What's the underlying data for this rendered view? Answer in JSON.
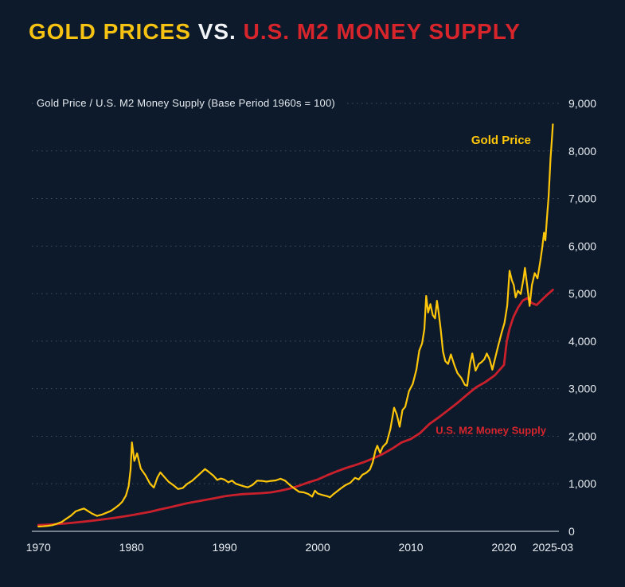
{
  "page": {
    "background": "#0c1a2b"
  },
  "header": {
    "title_part1": "GOLD PRICES",
    "title_part2": " VS. ",
    "title_part3": "U.S. M2 MONEY SUPPLY",
    "title_part1_color": "#f6c313",
    "title_part2_color": "#f2f4f7",
    "title_part3_color": "#d8252c"
  },
  "chart_data": {
    "type": "line",
    "title": "Gold Prices vs. U.S. M2 Money Supply",
    "subtitle": "Gold Price / U.S. M2 Money Supply (Base Period 1960s = 100)",
    "xlim": [
      1969.3,
      2025.9
    ],
    "ylim": [
      0,
      9000
    ],
    "grid": true,
    "grid_color": "rgba(168,184,205,0.35)",
    "axis_line_color": "#97a1b0",
    "axis_text_color": "#e9edf2",
    "legend_position": "inline-annotations",
    "x_ticks": [
      {
        "v": 1970,
        "label": "1970"
      },
      {
        "v": 1980,
        "label": "1980"
      },
      {
        "v": 1990,
        "label": "1990"
      },
      {
        "v": 2000,
        "label": "2000"
      },
      {
        "v": 2010,
        "label": "2010"
      },
      {
        "v": 2020,
        "label": "2020"
      },
      {
        "v": 2025.25,
        "label": "2025-03"
      }
    ],
    "y_ticks": [
      {
        "v": 0,
        "label": "0"
      },
      {
        "v": 1000,
        "label": "1,000"
      },
      {
        "v": 2000,
        "label": "2,000"
      },
      {
        "v": 3000,
        "label": "3,000"
      },
      {
        "v": 4000,
        "label": "4,000"
      },
      {
        "v": 5000,
        "label": "5,000"
      },
      {
        "v": 6000,
        "label": "6,000"
      },
      {
        "v": 7000,
        "label": "7,000"
      },
      {
        "v": 8000,
        "label": "8,000"
      },
      {
        "v": 9000,
        "label": "9,000"
      }
    ],
    "series": [
      {
        "id": "m2",
        "name": "U.S. M2 Money Supply",
        "color": "#c9202c",
        "stroke_width": 2.8,
        "points": [
          [
            1970,
            130
          ],
          [
            1971,
            140
          ],
          [
            1972,
            153
          ],
          [
            1973,
            168
          ],
          [
            1974,
            185
          ],
          [
            1975,
            205
          ],
          [
            1976,
            228
          ],
          [
            1977,
            252
          ],
          [
            1978,
            278
          ],
          [
            1979,
            308
          ],
          [
            1980,
            340
          ],
          [
            1981,
            374
          ],
          [
            1982,
            410
          ],
          [
            1983,
            458
          ],
          [
            1984,
            500
          ],
          [
            1985,
            545
          ],
          [
            1986,
            593
          ],
          [
            1987,
            628
          ],
          [
            1988,
            662
          ],
          [
            1989,
            700
          ],
          [
            1990,
            738
          ],
          [
            1991,
            763
          ],
          [
            1992,
            783
          ],
          [
            1993,
            793
          ],
          [
            1994,
            803
          ],
          [
            1995,
            820
          ],
          [
            1996,
            855
          ],
          [
            1997,
            900
          ],
          [
            1998,
            958
          ],
          [
            1999,
            1028
          ],
          [
            2000,
            1090
          ],
          [
            2001,
            1178
          ],
          [
            2002,
            1258
          ],
          [
            2003,
            1330
          ],
          [
            2004,
            1392
          ],
          [
            2005,
            1458
          ],
          [
            2006,
            1538
          ],
          [
            2007,
            1628
          ],
          [
            2008,
            1740
          ],
          [
            2009,
            1868
          ],
          [
            2010,
            1942
          ],
          [
            2011,
            2068
          ],
          [
            2012,
            2258
          ],
          [
            2013,
            2398
          ],
          [
            2014,
            2548
          ],
          [
            2015,
            2700
          ],
          [
            2016,
            2868
          ],
          [
            2017,
            3028
          ],
          [
            2018,
            3140
          ],
          [
            2019,
            3278
          ],
          [
            2020,
            3500
          ],
          [
            2020.3,
            4000
          ],
          [
            2020.6,
            4260
          ],
          [
            2021,
            4500
          ],
          [
            2021.5,
            4700
          ],
          [
            2022,
            4850
          ],
          [
            2022.5,
            4905
          ],
          [
            2023,
            4800
          ],
          [
            2023.5,
            4760
          ],
          [
            2024,
            4855
          ],
          [
            2024.5,
            4950
          ],
          [
            2025.25,
            5080
          ]
        ]
      },
      {
        "id": "gold",
        "name": "Gold Price",
        "color": "#ffc60a",
        "stroke_width": 2.2,
        "points": [
          [
            1970,
            100
          ],
          [
            1970.5,
            105
          ],
          [
            1971,
            115
          ],
          [
            1971.5,
            128
          ],
          [
            1972,
            160
          ],
          [
            1972.5,
            195
          ],
          [
            1973,
            265
          ],
          [
            1973.5,
            330
          ],
          [
            1974,
            420
          ],
          [
            1974.5,
            455
          ],
          [
            1974.9,
            480
          ],
          [
            1975.3,
            430
          ],
          [
            1975.8,
            370
          ],
          [
            1976.3,
            325
          ],
          [
            1976.8,
            350
          ],
          [
            1977.3,
            390
          ],
          [
            1977.8,
            430
          ],
          [
            1978.3,
            500
          ],
          [
            1978.7,
            560
          ],
          [
            1979,
            620
          ],
          [
            1979.4,
            750
          ],
          [
            1979.7,
            950
          ],
          [
            1979.9,
            1300
          ],
          [
            1980.05,
            1870
          ],
          [
            1980.3,
            1480
          ],
          [
            1980.6,
            1640
          ],
          [
            1981,
            1320
          ],
          [
            1981.5,
            1180
          ],
          [
            1982,
            1000
          ],
          [
            1982.4,
            920
          ],
          [
            1982.8,
            1140
          ],
          [
            1983.1,
            1240
          ],
          [
            1983.5,
            1150
          ],
          [
            1984,
            1040
          ],
          [
            1984.5,
            970
          ],
          [
            1985,
            890
          ],
          [
            1985.5,
            910
          ],
          [
            1986,
            1000
          ],
          [
            1986.5,
            1060
          ],
          [
            1987,
            1150
          ],
          [
            1987.5,
            1240
          ],
          [
            1987.9,
            1310
          ],
          [
            1988.3,
            1250
          ],
          [
            1988.8,
            1170
          ],
          [
            1989.2,
            1080
          ],
          [
            1989.6,
            1110
          ],
          [
            1990,
            1085
          ],
          [
            1990.4,
            1030
          ],
          [
            1990.8,
            1065
          ],
          [
            1991.2,
            1000
          ],
          [
            1991.6,
            975
          ],
          [
            1992,
            950
          ],
          [
            1992.5,
            925
          ],
          [
            1993,
            975
          ],
          [
            1993.5,
            1065
          ],
          [
            1994,
            1060
          ],
          [
            1994.5,
            1045
          ],
          [
            1995,
            1060
          ],
          [
            1995.5,
            1070
          ],
          [
            1996,
            1105
          ],
          [
            1996.5,
            1065
          ],
          [
            1997,
            975
          ],
          [
            1997.5,
            900
          ],
          [
            1998,
            830
          ],
          [
            1998.5,
            820
          ],
          [
            1999,
            785
          ],
          [
            1999.4,
            730
          ],
          [
            1999.7,
            855
          ],
          [
            2000,
            795
          ],
          [
            2000.5,
            765
          ],
          [
            2001,
            740
          ],
          [
            2001.3,
            715
          ],
          [
            2001.7,
            785
          ],
          [
            2002,
            830
          ],
          [
            2002.5,
            905
          ],
          [
            2003,
            975
          ],
          [
            2003.5,
            1020
          ],
          [
            2004,
            1125
          ],
          [
            2004.4,
            1090
          ],
          [
            2004.8,
            1190
          ],
          [
            2005.2,
            1230
          ],
          [
            2005.6,
            1300
          ],
          [
            2005.9,
            1450
          ],
          [
            2006.2,
            1700
          ],
          [
            2006.4,
            1800
          ],
          [
            2006.7,
            1650
          ],
          [
            2007,
            1780
          ],
          [
            2007.4,
            1860
          ],
          [
            2007.8,
            2150
          ],
          [
            2008.2,
            2600
          ],
          [
            2008.5,
            2450
          ],
          [
            2008.8,
            2200
          ],
          [
            2009.1,
            2550
          ],
          [
            2009.4,
            2620
          ],
          [
            2009.8,
            2950
          ],
          [
            2010.2,
            3100
          ],
          [
            2010.6,
            3400
          ],
          [
            2010.9,
            3800
          ],
          [
            2011.2,
            3950
          ],
          [
            2011.45,
            4250
          ],
          [
            2011.65,
            4950
          ],
          [
            2011.85,
            4600
          ],
          [
            2012.1,
            4780
          ],
          [
            2012.35,
            4550
          ],
          [
            2012.6,
            4480
          ],
          [
            2012.8,
            4850
          ],
          [
            2013,
            4580
          ],
          [
            2013.2,
            4250
          ],
          [
            2013.45,
            3780
          ],
          [
            2013.7,
            3580
          ],
          [
            2014,
            3520
          ],
          [
            2014.3,
            3720
          ],
          [
            2014.7,
            3480
          ],
          [
            2015,
            3330
          ],
          [
            2015.4,
            3230
          ],
          [
            2015.8,
            3080
          ],
          [
            2016.05,
            3060
          ],
          [
            2016.35,
            3520
          ],
          [
            2016.6,
            3740
          ],
          [
            2016.95,
            3380
          ],
          [
            2017.3,
            3520
          ],
          [
            2017.6,
            3560
          ],
          [
            2017.9,
            3620
          ],
          [
            2018.15,
            3740
          ],
          [
            2018.45,
            3620
          ],
          [
            2018.75,
            3400
          ],
          [
            2019.05,
            3640
          ],
          [
            2019.4,
            3920
          ],
          [
            2019.75,
            4180
          ],
          [
            2020.05,
            4380
          ],
          [
            2020.35,
            4750
          ],
          [
            2020.6,
            5480
          ],
          [
            2020.85,
            5280
          ],
          [
            2021.05,
            5180
          ],
          [
            2021.25,
            4920
          ],
          [
            2021.5,
            5060
          ],
          [
            2021.8,
            4990
          ],
          [
            2022.1,
            5320
          ],
          [
            2022.25,
            5540
          ],
          [
            2022.5,
            5160
          ],
          [
            2022.75,
            4740
          ],
          [
            2023,
            5180
          ],
          [
            2023.3,
            5430
          ],
          [
            2023.6,
            5320
          ],
          [
            2023.9,
            5680
          ],
          [
            2024.1,
            5950
          ],
          [
            2024.3,
            6280
          ],
          [
            2024.45,
            6120
          ],
          [
            2024.6,
            6550
          ],
          [
            2024.8,
            7050
          ],
          [
            2025,
            7850
          ],
          [
            2025.15,
            8250
          ],
          [
            2025.25,
            8560
          ]
        ]
      }
    ],
    "annotations": [
      {
        "id": "gold-price-label",
        "text": "Gold Price",
        "color": "#ffc60a",
        "x": 2022.9,
        "y": 8150,
        "anchor": "end",
        "size": 15
      },
      {
        "id": "m2-money-supply-label",
        "text": "U.S. M2 Money Supply",
        "color": "#d8252c",
        "x": 2018.6,
        "y": 2050,
        "anchor": "middle",
        "size": 13
      }
    ]
  }
}
